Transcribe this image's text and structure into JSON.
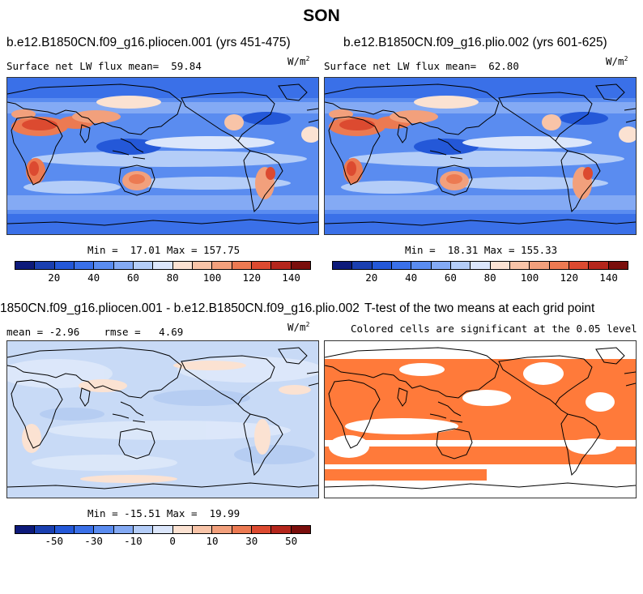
{
  "title": "SON",
  "panels": [
    {
      "title": "b.e12.B1850CN.f09_g16.pliocen.001 (yrs 451-475)",
      "label": "Surface net LW flux mean=",
      "value": "59.84",
      "units_base": "W/m",
      "units_exp": "2",
      "min_label": "Min =",
      "min": "17.01",
      "max_label": "Max =",
      "max": "157.75",
      "colorbar_ticks": [
        "20",
        "40",
        "60",
        "80",
        "100",
        "120",
        "140"
      ]
    },
    {
      "title": "b.e12.B1850CN.f09_g16.plio.002 (yrs 601-625)",
      "label": "Surface net LW flux mean=",
      "value": "62.80",
      "units_base": "W/m",
      "units_exp": "2",
      "min_label": "Min =",
      "min": "18.31",
      "max_label": "Max =",
      "max": "155.33",
      "colorbar_ticks": [
        "20",
        "40",
        "60",
        "80",
        "100",
        "120",
        "140"
      ]
    },
    {
      "title": "1850CN.f09_g16.pliocen.001 - b.e12.B1850CN.f09_g16.plio.002",
      "mean_label": "mean =",
      "mean": "-2.96",
      "rmse_label": "rmse =",
      "rmse": "4.69",
      "units_base": "W/m",
      "units_exp": "2",
      "min_label": "Min =",
      "min": "-15.51",
      "max_label": "Max =",
      "max": "19.99",
      "colorbar_ticks": [
        "-50",
        "-30",
        "-10",
        "0",
        "10",
        "30",
        "50"
      ]
    },
    {
      "title": "T-test of the two means at each grid point",
      "subtitle": "Colored cells are significant at the 0.05 level",
      "sig_color": "#ff7a3a"
    }
  ],
  "colorbar_colors": [
    "#0d1a7a",
    "#1a3fb0",
    "#2458d8",
    "#3a70e8",
    "#5a8cf0",
    "#84aaf4",
    "#b4cdf8",
    "#dbe6fb",
    "#fbe2d2",
    "#f8c4a8",
    "#f2a07c",
    "#ec7a52",
    "#dc4a30",
    "#b4261c",
    "#7a0e0c"
  ]
}
